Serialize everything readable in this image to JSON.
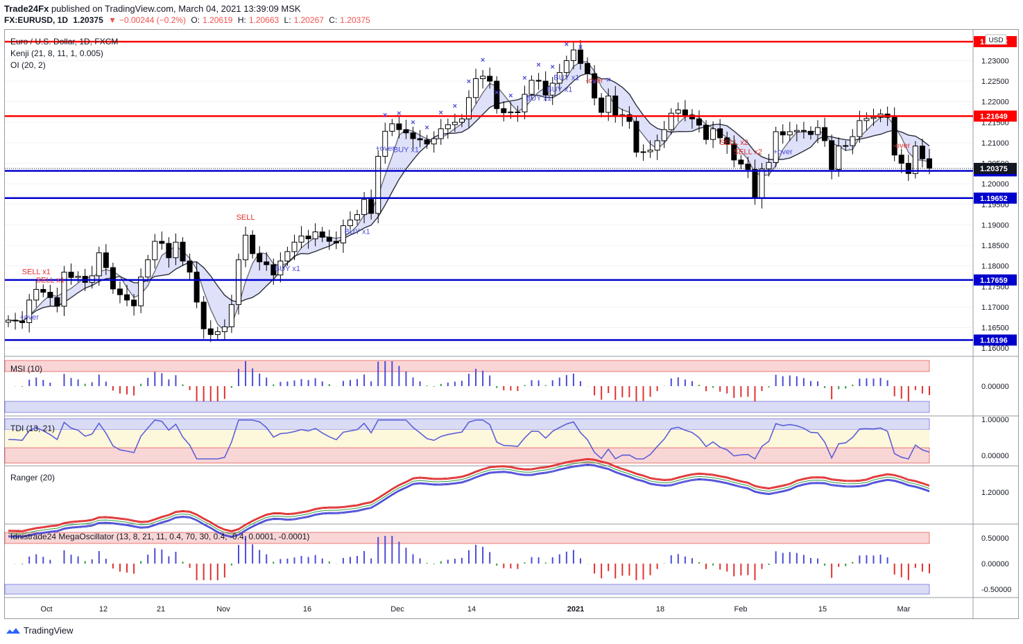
{
  "header": {
    "publisher": "Trade24Fx",
    "published_text": "published on TradingView.com, March 04, 2021 13:39:09 MSK",
    "symbol": "FX:EURUSD, 1D",
    "last": "1.20375",
    "change_arrow": "▼",
    "change": "−0.00244 (−0.2%)",
    "o_label": "O:",
    "o": "1.20619",
    "h_label": "H:",
    "h": "1.20663",
    "l_label": "L:",
    "l": "1.20267",
    "c_label": "C:",
    "c": "1.20375"
  },
  "footer": {
    "brand": "TradingView",
    "logo_icon": "tradingview-logo-icon"
  },
  "chart_data": [
    {
      "type": "candlestick",
      "title": "Euro / U.S. Dollar, 1D, FXCM",
      "indicators": [
        "Kenji (21, 8, 11, 1, 0.005)",
        "OI (20, 2)"
      ],
      "currency": "USD",
      "ylim": [
        1.158,
        1.2375
      ],
      "y_ticks": [
        "1.23000",
        "1.22500",
        "1.22000",
        "1.21500",
        "1.21000",
        "1.20500",
        "1.20000",
        "1.19500",
        "1.19000",
        "1.18500",
        "1.18000",
        "1.17500",
        "1.17000",
        "1.16500",
        "1.16000"
      ],
      "x_ticks": [
        "Oct",
        "12",
        "21",
        "Nov",
        "16",
        "Dec",
        "14",
        "2021",
        "18",
        "Feb",
        "15",
        "Mar"
      ],
      "close": [
        1.1668,
        1.1666,
        1.1662,
        1.1717,
        1.1743,
        1.1736,
        1.1723,
        1.1702,
        1.1785,
        1.1772,
        1.1775,
        1.176,
        1.1776,
        1.1832,
        1.1796,
        1.1744,
        1.173,
        1.1717,
        1.1703,
        1.1773,
        1.1815,
        1.186,
        1.1855,
        1.182,
        1.1858,
        1.1812,
        1.1785,
        1.1712,
        1.1647,
        1.1633,
        1.164,
        1.1652,
        1.1706,
        1.1815,
        1.1875,
        1.183,
        1.181,
        1.1803,
        1.1778,
        1.1812,
        1.1835,
        1.1858,
        1.1873,
        1.1866,
        1.1883,
        1.187,
        1.186,
        1.1856,
        1.1898,
        1.1912,
        1.1925,
        1.1962,
        1.1928,
        1.2067,
        1.2128,
        1.2146,
        1.2132,
        1.2124,
        1.211,
        1.2107,
        1.2097,
        1.211,
        1.2134,
        1.2144,
        1.215,
        1.2158,
        1.221,
        1.2256,
        1.2262,
        1.225,
        1.2183,
        1.2173,
        1.2175,
        1.2175,
        1.2218,
        1.2252,
        1.225,
        1.2216,
        1.2245,
        1.2271,
        1.23,
        1.2326,
        1.2293,
        1.2268,
        1.2209,
        1.2174,
        1.2214,
        1.2164,
        1.2168,
        1.2152,
        1.2077,
        1.2078,
        1.2082,
        1.2105,
        1.2132,
        1.2172,
        1.218,
        1.2167,
        1.2158,
        1.2143,
        1.2108,
        1.2134,
        1.2112,
        1.2097,
        1.2058,
        1.2048,
        1.2035,
        1.1964,
        1.2036,
        1.2052,
        1.2127,
        1.2119,
        1.2127,
        1.213,
        1.2128,
        1.212,
        1.2137,
        1.2105,
        1.2035,
        1.2092,
        1.2093,
        1.2115,
        1.2154,
        1.2159,
        1.2162,
        1.217,
        1.2162,
        1.207,
        1.205,
        1.2025,
        1.2092,
        1.2061,
        1.2038
      ],
      "series_labels": [
        "+over",
        "SELL x1",
        "SELL x1",
        "SELL",
        "BUY x1",
        "BUY x1",
        "BUY x1",
        "+over",
        "BUY x1",
        "BUY x1",
        "BUY x1",
        "-over",
        "SELL x2",
        "SELL x2",
        "+over",
        "-over"
      ],
      "levels": [
        {
          "value": 1.23462,
          "label": "1.23462",
          "color": "#ff0000"
        },
        {
          "value": 1.21649,
          "label": "1.21649",
          "color": "#ff0000"
        },
        {
          "value": 1.20316,
          "label": "1.20316",
          "color": "#0000cc"
        },
        {
          "value": 1.19652,
          "label": "1.19652",
          "color": "#0000cc"
        },
        {
          "value": 1.17659,
          "label": "1.17659",
          "color": "#0000cc"
        },
        {
          "value": 1.16196,
          "label": "1.16196",
          "color": "#0000cc"
        }
      ],
      "last_price_label": "1.20375"
    },
    {
      "type": "bar",
      "title": "MSI (10)",
      "y_ticks": [
        "0.00000"
      ]
    },
    {
      "type": "line",
      "title": "TDI (13, 21)",
      "y_ticks": [
        "1.00000",
        "0.00000"
      ]
    },
    {
      "type": "line",
      "title": "Ranger (20)",
      "y_ticks": [
        "1.20000"
      ]
    },
    {
      "type": "bar",
      "title": "Idnistrade24 MegaOscillator (13, 8, 21, 11, 0.4, 70, 30, 0.4, -0.4, 0.0001, -0.0001)",
      "y_ticks": [
        "0.50000",
        "0.00000",
        "-0.50000"
      ]
    }
  ],
  "colors": {
    "up": "#ffffff",
    "down": "#000000",
    "red_level": "#ff0000",
    "blue_level": "#0000cc",
    "band_fill": "#d6d9f7",
    "pos_bar": "#4b4bd8",
    "neg_bar": "#e03030",
    "neutral_bar": "#2e9a3e",
    "buy_marker": "#4b4bd8",
    "sell_marker": "#e03030"
  }
}
